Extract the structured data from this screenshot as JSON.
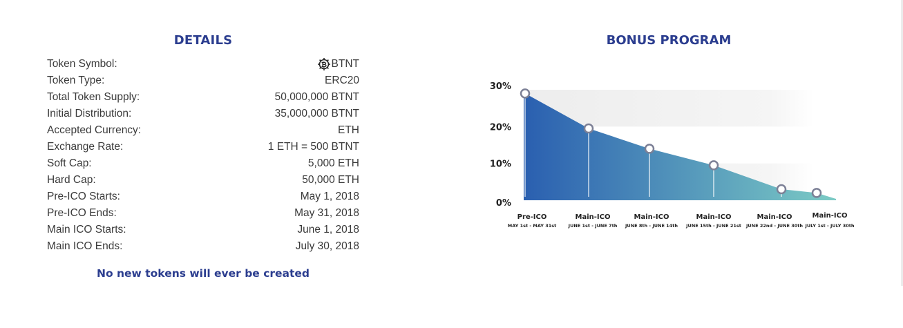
{
  "details": {
    "title": "DETAILS",
    "rows": [
      {
        "label": "Token Symbol:",
        "value": "BTNT"
      },
      {
        "label": "Token Type:",
        "value": "ERC20"
      },
      {
        "label": "Total Token Supply:",
        "value": "50,000,000 BTNT"
      },
      {
        "label": "Initial Distribution:",
        "value": "35,000,000 BTNT"
      },
      {
        "label": "Accepted Currency:",
        "value": "ETH"
      },
      {
        "label": "Exchange Rate:",
        "value": "1 ETH = 500 BTNT"
      },
      {
        "label": "Soft Cap:",
        "value": "5,000 ETH"
      },
      {
        "label": "Hard Cap:",
        "value": "50,000 ETH"
      },
      {
        "label": "Pre-ICO Starts:",
        "value": "May 1, 2018"
      },
      {
        "label": "Pre-ICO Ends:",
        "value": "May 31, 2018"
      },
      {
        "label": "Main ICO Starts:",
        "value": "June 1, 2018"
      },
      {
        "label": "Main ICO Ends:",
        "value": "July 30, 2018"
      }
    ],
    "footnote": "No new tokens will ever be created",
    "token_icon": "bitcoin-gear-icon"
  },
  "bonus": {
    "title": "BONUS PROGRAM"
  },
  "chart_data": {
    "type": "area",
    "ylabels": [
      "30%",
      "20%",
      "10%",
      "0%"
    ],
    "ylim": [
      0,
      30
    ],
    "categories": [
      {
        "name": "Pre-ICO",
        "dates": "MAY 1st - MAY 31st"
      },
      {
        "name": "Main-ICO",
        "dates": "JUNE 1st - JUNE 7th"
      },
      {
        "name": "Main-ICO",
        "dates": "JUNE 8th - JUNE 14th"
      },
      {
        "name": "Main-ICO",
        "dates": "JUNE 15th - JUNE 21st"
      },
      {
        "name": "Main-ICO",
        "dates": "JUNE 22nd - JUNE 30th"
      },
      {
        "name": "Main-ICO",
        "dates": "JULY 1st - JULY 30th"
      }
    ],
    "values": [
      29,
      19.5,
      14,
      9.5,
      3,
      2
    ],
    "colors": {
      "start": "#2a5fb0",
      "end": "#7ccbc5",
      "marker": "#7c8096",
      "band": "#f0f0f0"
    }
  }
}
